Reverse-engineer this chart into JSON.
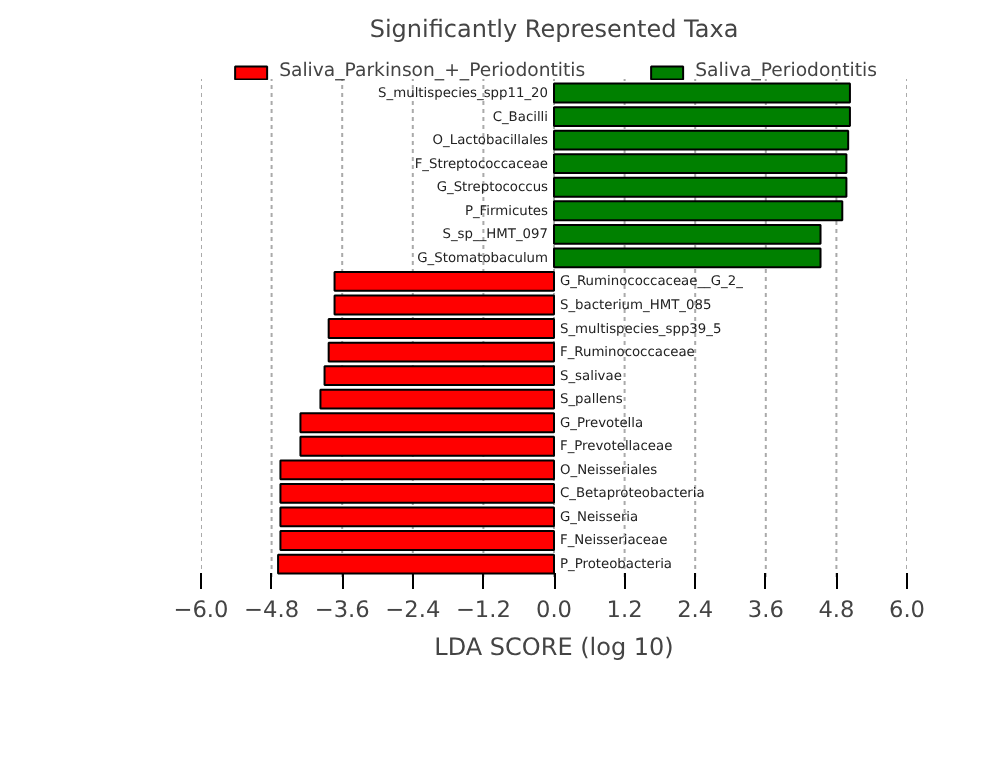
{
  "chart_data": {
    "type": "bar",
    "orientation": "horizontal",
    "title": "Significantly Represented Taxa",
    "xlabel": "LDA SCORE (log 10)",
    "categories": [
      "S_multispecies_spp11_20",
      "C_Bacilli",
      "O_Lactobacillales",
      "F_Streptococcaceae",
      "G_Streptococcus",
      "P_Firmicutes",
      "S_sp__HMT_097",
      "G_Stomatobaculum",
      "G_Ruminococcaceae__G_2_",
      "S_bacterium_HMT_085",
      "S_multispecies_spp39_5",
      "F_Ruminococcaceae",
      "S_salivae",
      "S_pallens",
      "G_Prevotella",
      "F_Prevotellaceae",
      "O_Neisseriales",
      "C_Betaproteobacteria",
      "G_Neisseria",
      "F_Neisseriaceae",
      "P_Proteobacteria"
    ],
    "series": [
      {
        "name": "Saliva_Parkinson_+_Periodontitis",
        "color": "#ff0000",
        "values": [
          null,
          null,
          null,
          null,
          null,
          null,
          null,
          null,
          -3.73,
          -3.73,
          -3.83,
          -3.83,
          -3.9,
          -3.97,
          -4.31,
          -4.31,
          -4.65,
          -4.65,
          -4.65,
          -4.65,
          -4.69
        ]
      },
      {
        "name": "Saliva_Periodontitis",
        "color": "#008000",
        "values": [
          5.03,
          5.03,
          5.0,
          4.97,
          4.97,
          4.9,
          4.53,
          4.53,
          null,
          null,
          null,
          null,
          null,
          null,
          null,
          null,
          null,
          null,
          null,
          null,
          null
        ]
      }
    ],
    "xlim": [
      -6.0,
      6.0
    ],
    "xticks": [
      {
        "value": -6.0,
        "label": "−6.0"
      },
      {
        "value": -4.8,
        "label": "−4.8"
      },
      {
        "value": -3.6,
        "label": "−3.6"
      },
      {
        "value": -2.4,
        "label": "−2.4"
      },
      {
        "value": -1.2,
        "label": "−1.2"
      },
      {
        "value": 0,
        "label": "0.0"
      },
      {
        "value": 1.2,
        "label": "1.2"
      },
      {
        "value": 2.4,
        "label": "2.4"
      },
      {
        "value": 3.6,
        "label": "3.6"
      },
      {
        "value": 4.8,
        "label": "4.8"
      },
      {
        "value": 6.0,
        "label": "6.0"
      }
    ],
    "grid": "x",
    "legend": "top"
  }
}
